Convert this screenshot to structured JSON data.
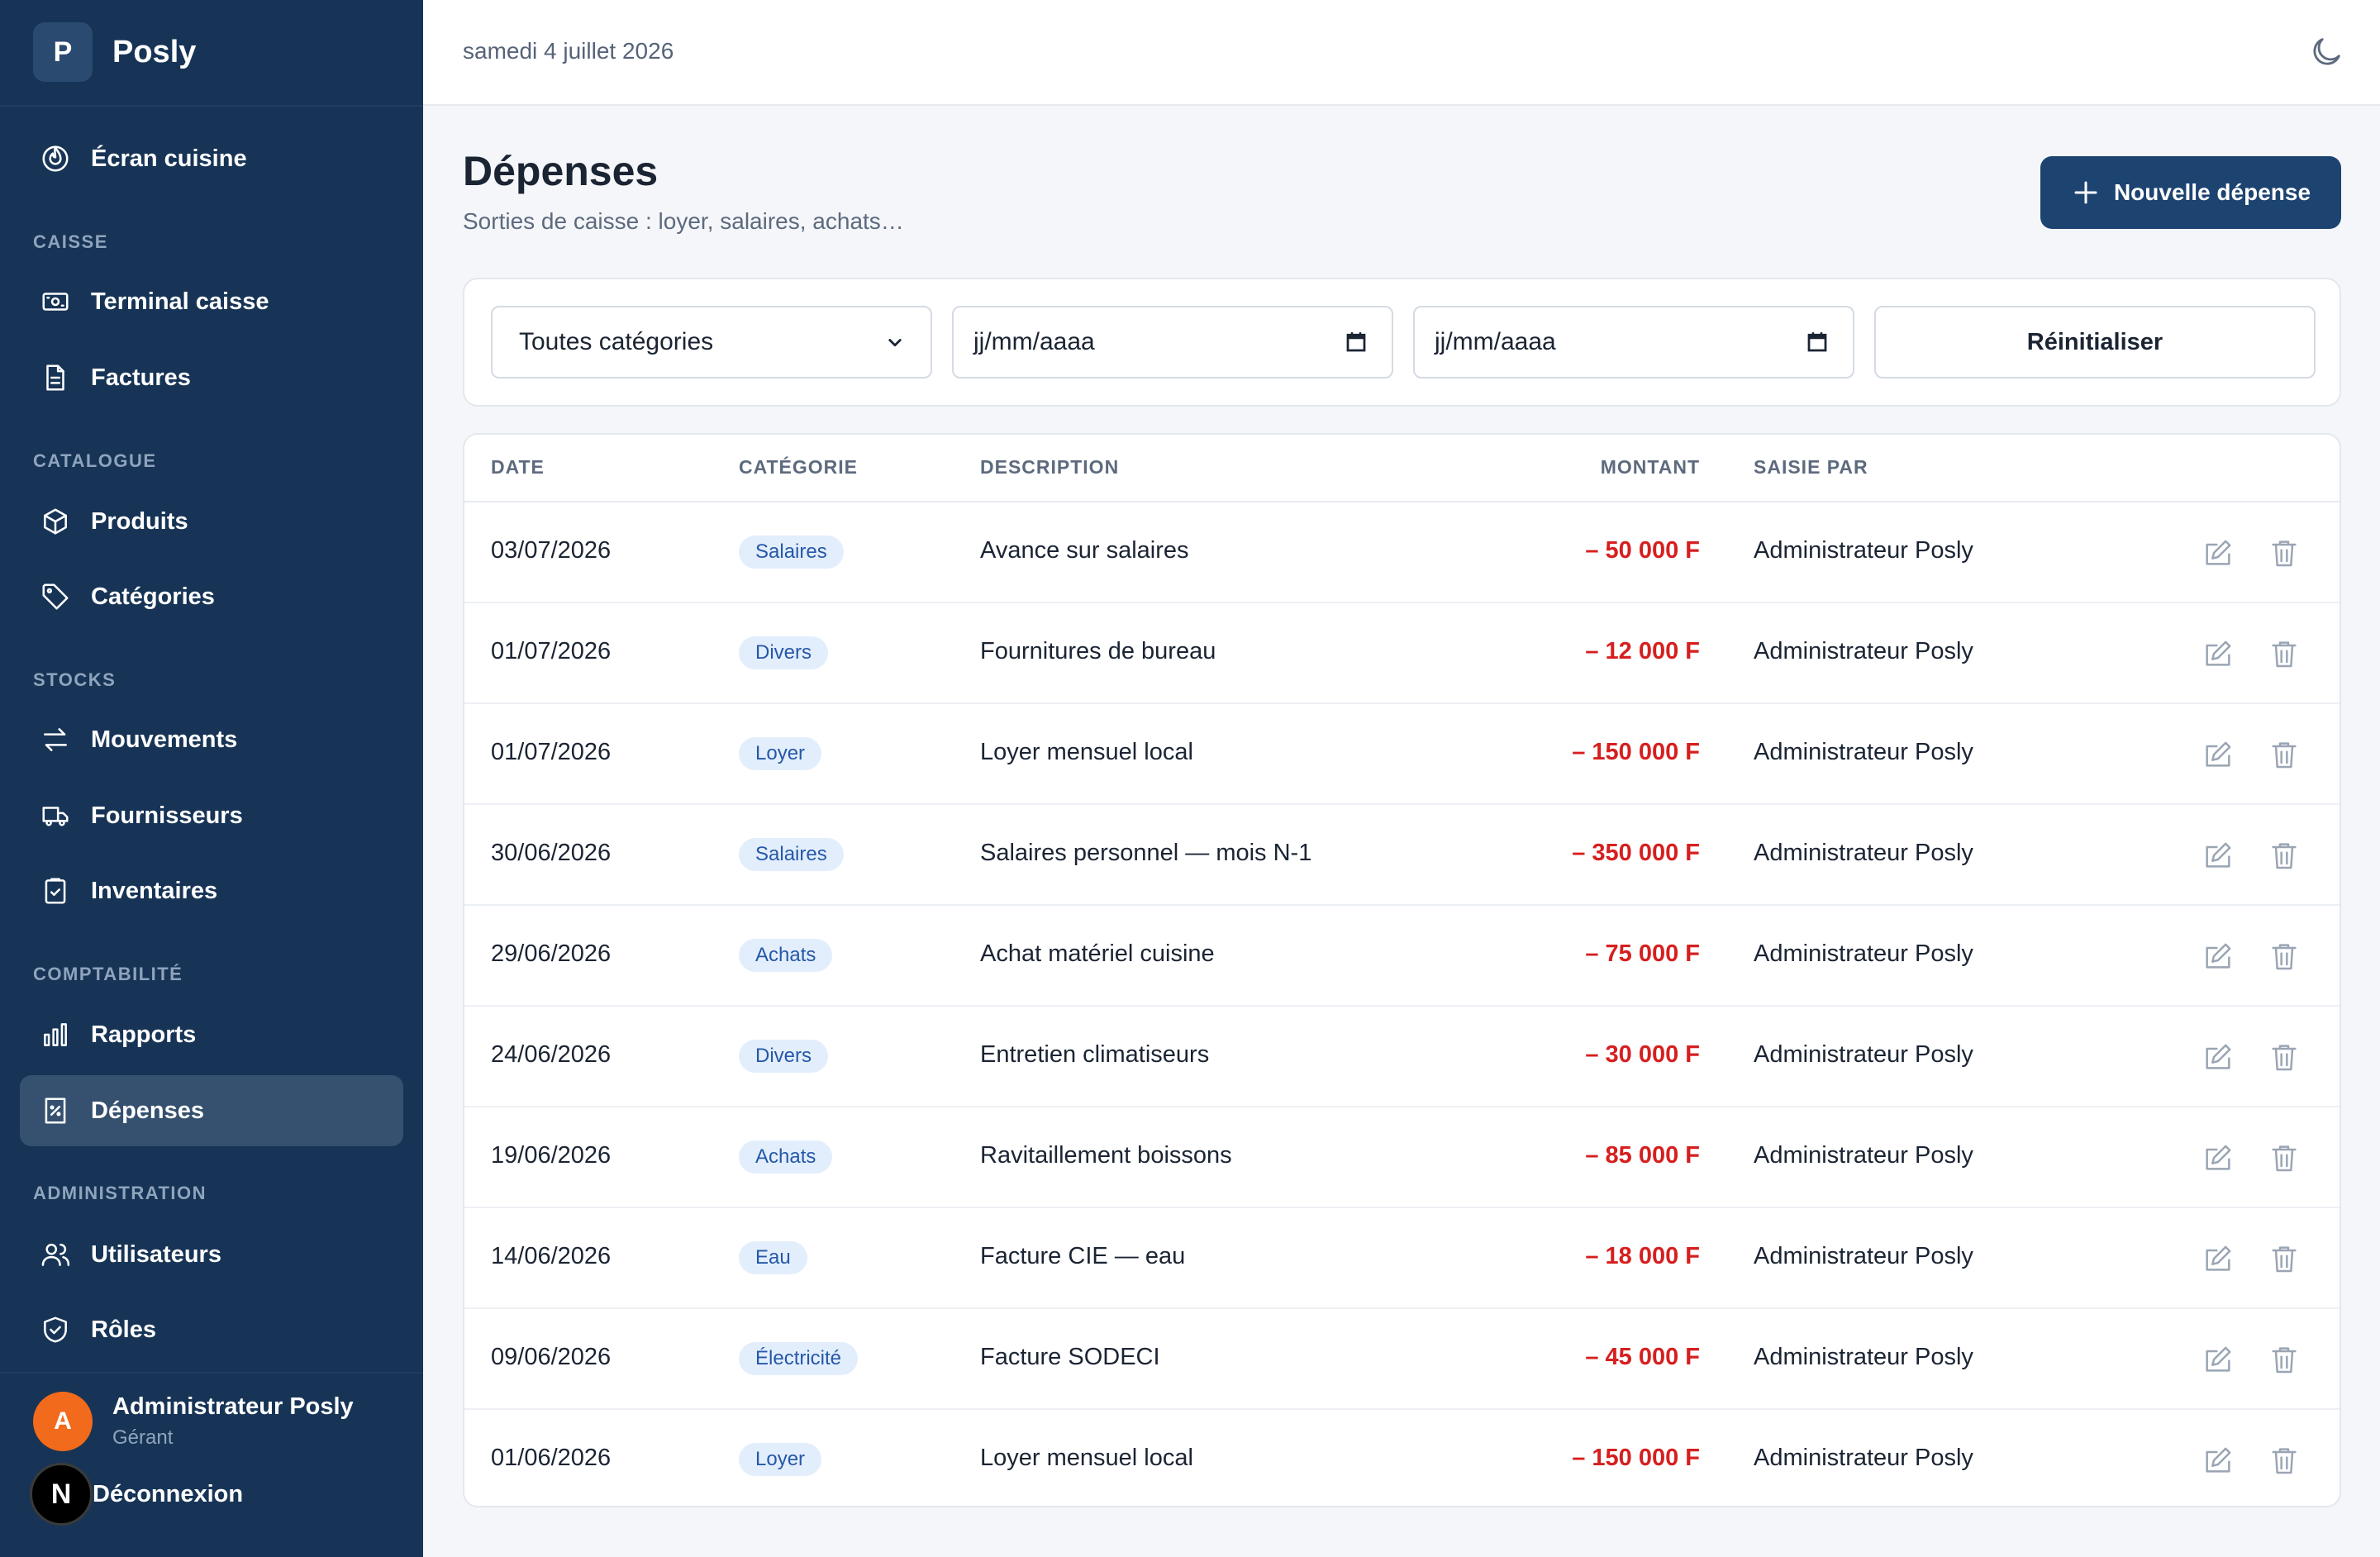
{
  "app": {
    "logo_letter": "P",
    "name": "Posly"
  },
  "topbar": {
    "date": "samedi 4 juillet 2026",
    "theme_icon": "moon-icon"
  },
  "sidebar": {
    "kitchen": "Écran cuisine",
    "sections": {
      "caisse": "CAISSE",
      "catalogue": "CATALOGUE",
      "stocks": "STOCKS",
      "comptabilite": "COMPTABILITÉ",
      "administration": "ADMINISTRATION"
    },
    "items": {
      "terminal": "Terminal caisse",
      "factures": "Factures",
      "produits": "Produits",
      "categories": "Catégories",
      "mouvements": "Mouvements",
      "fournisseurs": "Fournisseurs",
      "inventaires": "Inventaires",
      "rapports": "Rapports",
      "depenses": "Dépenses",
      "utilisateurs": "Utilisateurs",
      "roles": "Rôles"
    },
    "user": {
      "initial": "A",
      "name": "Administrateur Posly",
      "role": "Gérant"
    },
    "logout": {
      "badge": "N",
      "label": "Déconnexion"
    }
  },
  "page": {
    "title": "Dépenses",
    "subtitle": "Sorties de caisse : loyer, salaires, achats…",
    "new_button": "Nouvelle dépense"
  },
  "filters": {
    "category": "Toutes catégories",
    "date_from": "jj/mm/aaaa",
    "date_to": "jj/mm/aaaa",
    "reset": "Réinitialiser"
  },
  "table": {
    "headers": {
      "date": "DATE",
      "category": "CATÉGORIE",
      "description": "DESCRIPTION",
      "amount": "MONTANT",
      "entered_by": "SAISIE PAR"
    },
    "rows": [
      {
        "date": "03/07/2026",
        "category": "Salaires",
        "description": "Avance sur salaires",
        "amount": "– 50 000 F",
        "entered_by": "Administrateur Posly"
      },
      {
        "date": "01/07/2026",
        "category": "Divers",
        "description": "Fournitures de bureau",
        "amount": "– 12 000 F",
        "entered_by": "Administrateur Posly"
      },
      {
        "date": "01/07/2026",
        "category": "Loyer",
        "description": "Loyer mensuel local",
        "amount": "– 150 000 F",
        "entered_by": "Administrateur Posly"
      },
      {
        "date": "30/06/2026",
        "category": "Salaires",
        "description": "Salaires personnel — mois N-1",
        "amount": "– 350 000 F",
        "entered_by": "Administrateur Posly"
      },
      {
        "date": "29/06/2026",
        "category": "Achats",
        "description": "Achat matériel cuisine",
        "amount": "– 75 000 F",
        "entered_by": "Administrateur Posly"
      },
      {
        "date": "24/06/2026",
        "category": "Divers",
        "description": "Entretien climatiseurs",
        "amount": "– 30 000 F",
        "entered_by": "Administrateur Posly"
      },
      {
        "date": "19/06/2026",
        "category": "Achats",
        "description": "Ravitaillement boissons",
        "amount": "– 85 000 F",
        "entered_by": "Administrateur Posly"
      },
      {
        "date": "14/06/2026",
        "category": "Eau",
        "description": "Facture CIE — eau",
        "amount": "– 18 000 F",
        "entered_by": "Administrateur Posly"
      },
      {
        "date": "09/06/2026",
        "category": "Électricité",
        "description": "Facture SODECI",
        "amount": "– 45 000 F",
        "entered_by": "Administrateur Posly"
      },
      {
        "date": "01/06/2026",
        "category": "Loyer",
        "description": "Loyer mensuel local",
        "amount": "– 150 000 F",
        "entered_by": "Administrateur Posly"
      }
    ]
  },
  "colors": {
    "sidebar": "#173456",
    "accent": "#1d4471",
    "negative": "#d61f1f",
    "badge_bg": "#e3eefc",
    "badge_text": "#2558a8"
  }
}
